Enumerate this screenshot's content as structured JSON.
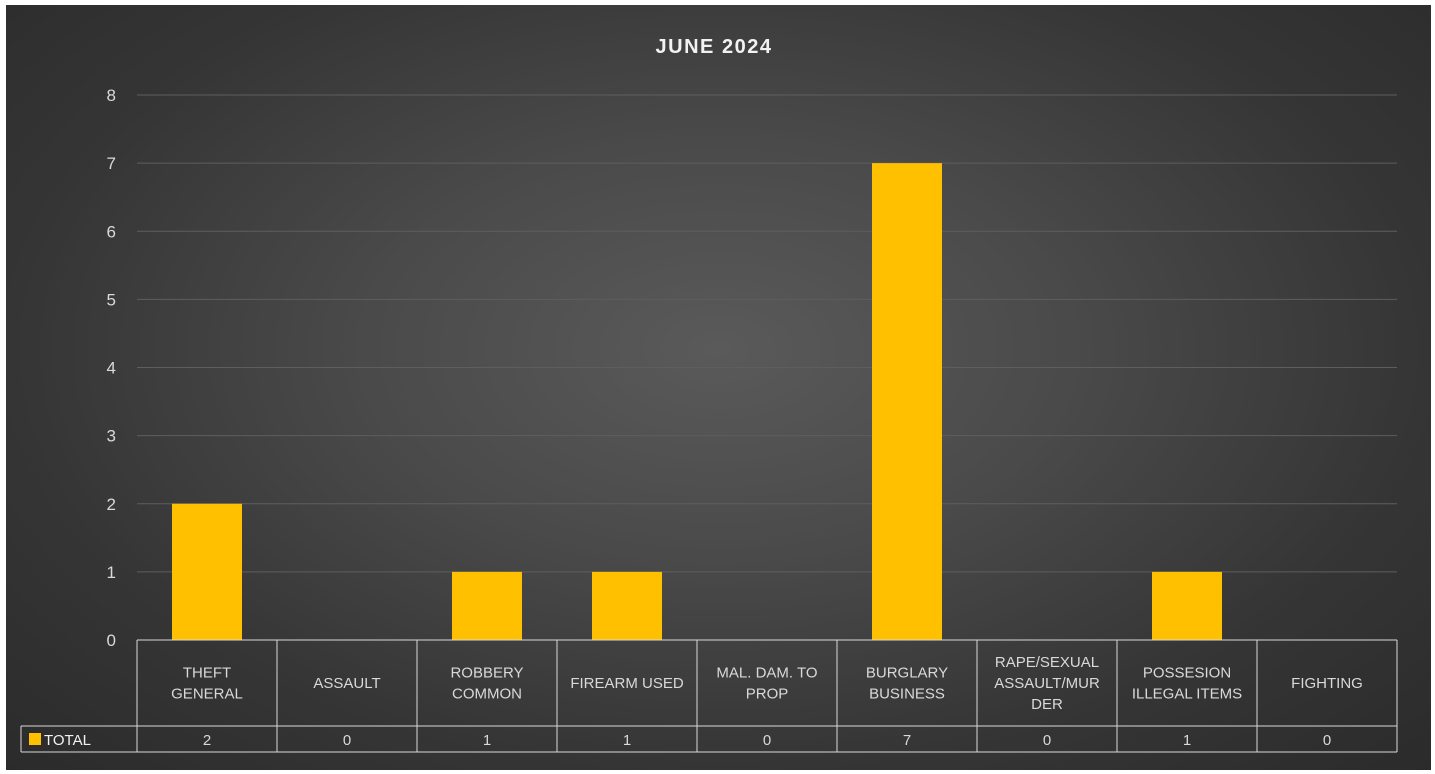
{
  "chart_data": {
    "type": "bar",
    "title": "JUNE 2024",
    "categories": [
      [
        "THEFT",
        "GENERAL"
      ],
      [
        "ASSAULT"
      ],
      [
        "ROBBERY",
        "COMMON"
      ],
      [
        "FIREARM USED"
      ],
      [
        "MAL. DAM. TO",
        "PROP"
      ],
      [
        "BURGLARY",
        "BUSINESS"
      ],
      [
        "RAPE/SEXUAL",
        "ASSAULT/MUR",
        "DER"
      ],
      [
        "POSSESION",
        "ILLEGAL ITEMS"
      ],
      [
        "FIGHTING"
      ]
    ],
    "series": [
      {
        "name": "TOTAL",
        "values": [
          2,
          0,
          1,
          1,
          0,
          7,
          0,
          1,
          0
        ],
        "color": "#ffc000"
      }
    ],
    "ylim": [
      0,
      8
    ],
    "yticks": [
      0,
      1,
      2,
      3,
      4,
      5,
      6,
      7,
      8
    ],
    "grid": true,
    "legend": "data-table-left",
    "data_table": true
  },
  "colors": {
    "bar": "#ffc000",
    "gridline": "#5e5e5e",
    "table_line": "#d9d9d9",
    "text": "#d9d9d9"
  }
}
